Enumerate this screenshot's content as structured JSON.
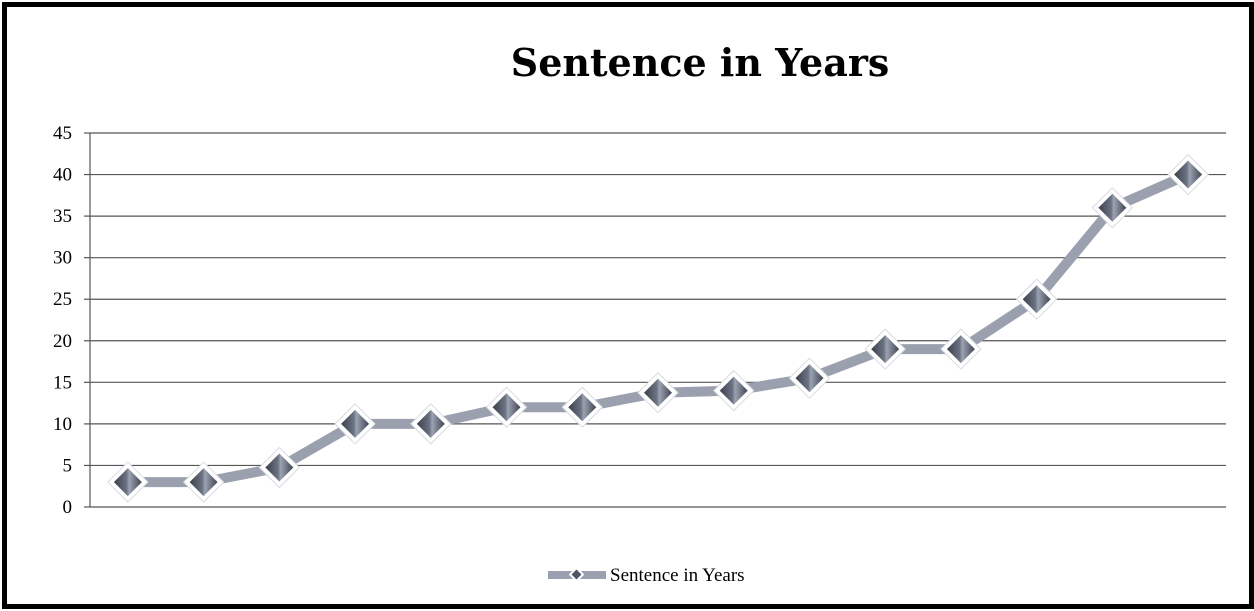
{
  "chart_data": {
    "type": "line",
    "title": "Sentence in Years",
    "xlabel": "",
    "ylabel": "",
    "ylim": [
      0,
      45
    ],
    "y_ticks": [
      "0",
      "5",
      "10",
      "15",
      "20",
      "25",
      "30",
      "35",
      "40",
      "45"
    ],
    "grid": true,
    "legend_position": "bottom",
    "series": [
      {
        "name": "Sentence in Years",
        "values": [
          3,
          3,
          4.75,
          10,
          10,
          12,
          12,
          13.75,
          14,
          15.5,
          19,
          19,
          25,
          36,
          40
        ],
        "line_color": "#9aa0ae",
        "marker": "diamond",
        "marker_color": "#4f5562"
      }
    ]
  }
}
